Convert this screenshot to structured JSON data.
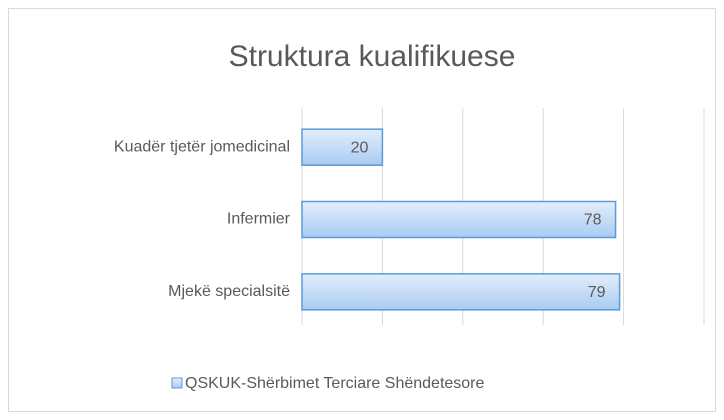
{
  "chart_data": {
    "type": "barh",
    "title": "Struktura kualifikuese",
    "categories": [
      "Kuadër tjetër jomedicinal",
      "Infermier",
      "Mjekë specialsitë"
    ],
    "series": [
      {
        "name": "QSKUK-Shërbimet Terciare Shëndetesore",
        "color": "#5b9bd5",
        "values": [
          20,
          78,
          79
        ]
      }
    ],
    "xlim": [
      0,
      100
    ],
    "xticks": [
      0,
      20,
      40,
      60,
      80,
      100
    ],
    "grid": true,
    "legend": "bottom"
  }
}
